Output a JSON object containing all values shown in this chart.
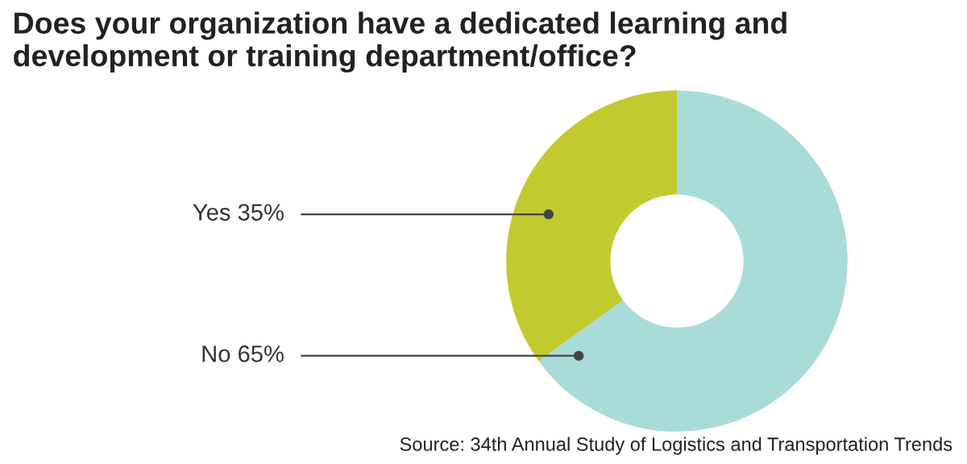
{
  "chart_data": {
    "type": "donut",
    "title": "Does your organization have a dedicated learning and development or training department/office?",
    "categories": [
      "Yes",
      "No"
    ],
    "values": [
      35,
      65
    ],
    "value_labels": [
      "35%",
      "65%"
    ],
    "colors": [
      "#c3ca2f",
      "#a9dcd9"
    ],
    "legend": false,
    "annotations": [
      "Source: 34th Annual Study of Logistics and Transportation Trends"
    ]
  }
}
